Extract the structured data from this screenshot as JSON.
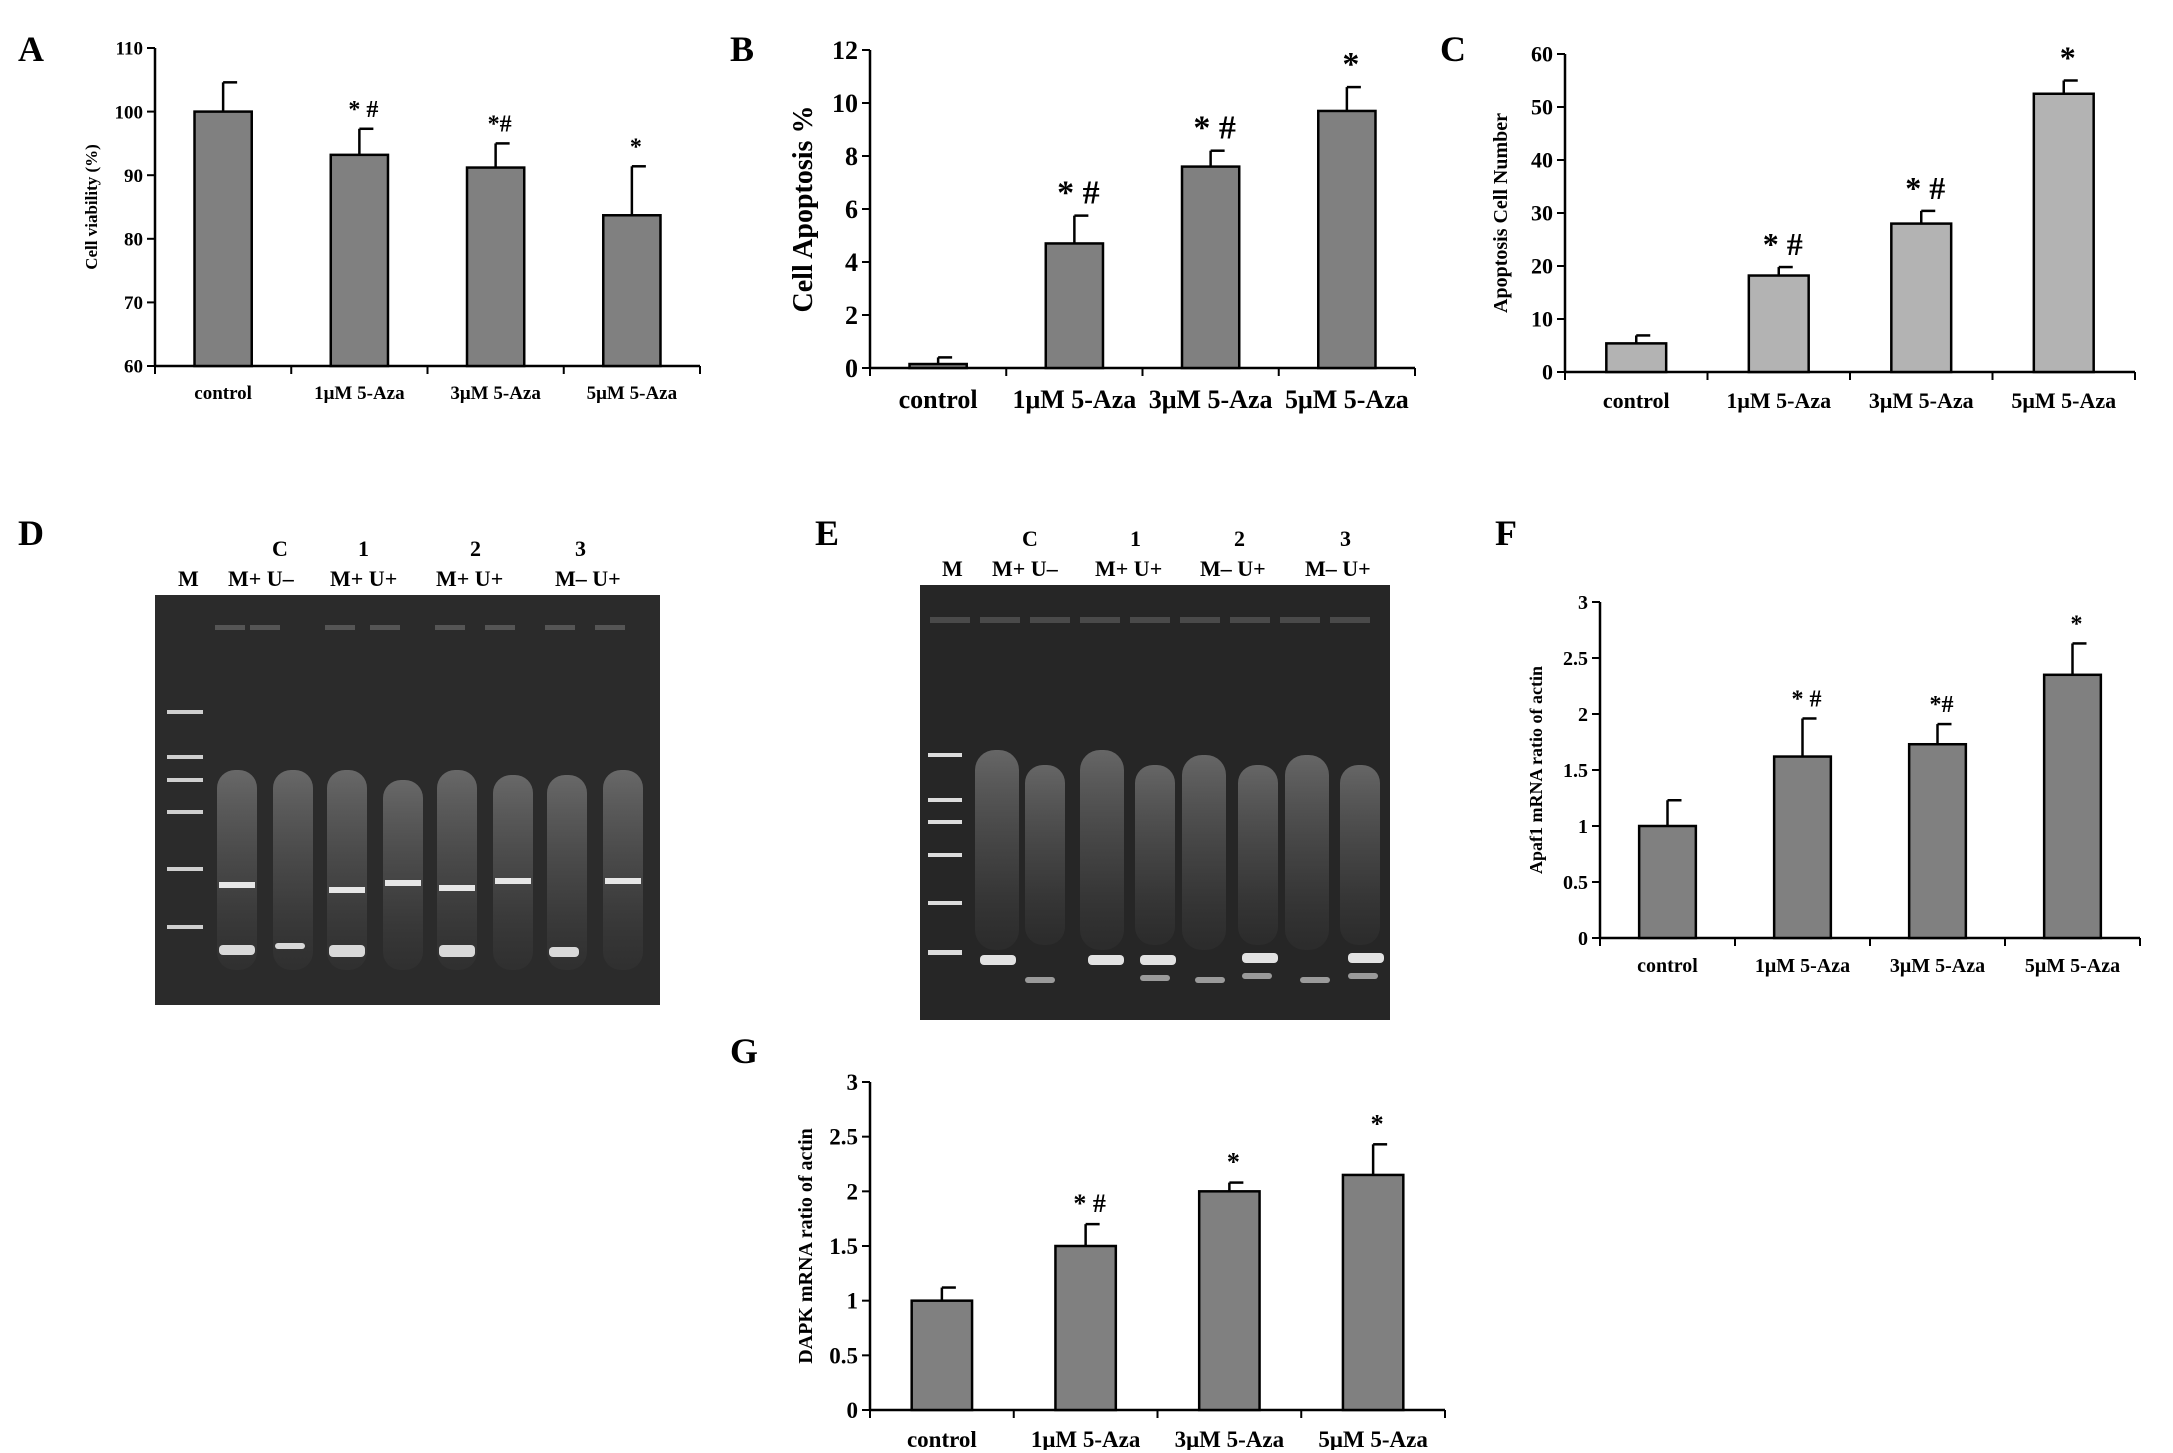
{
  "panels": [
    "A",
    "B",
    "C",
    "D",
    "E",
    "F",
    "G"
  ],
  "chart_data": [
    {
      "id": "A",
      "type": "bar",
      "categories": [
        "control",
        "1μM 5-Aza",
        "3μM 5-Aza",
        "5μM 5-Aza"
      ],
      "values": [
        100,
        93.2,
        91.2,
        83.7
      ],
      "errors": [
        4.6,
        4.1,
        3.8,
        7.7
      ],
      "annotations": [
        "",
        "* #",
        "*#",
        "*"
      ],
      "ylabel": "Cell viability (%)",
      "ylim": [
        60,
        110
      ],
      "yticks": [
        60,
        70,
        80,
        90,
        100,
        110
      ],
      "bar_color": "#808080"
    },
    {
      "id": "B",
      "type": "bar",
      "categories": [
        "control",
        "1μM 5-Aza",
        "3μM 5-Aza",
        "5μM 5-Aza"
      ],
      "values": [
        0.15,
        4.7,
        7.6,
        9.7
      ],
      "errors": [
        0.25,
        1.05,
        0.6,
        0.9
      ],
      "annotations": [
        "",
        "* #",
        "* #",
        "*"
      ],
      "ylabel": "Cell Apoptosis %",
      "ylim": [
        0,
        12
      ],
      "yticks": [
        0,
        2,
        4,
        6,
        8,
        10,
        12
      ],
      "bar_color": "#808080"
    },
    {
      "id": "C",
      "type": "bar",
      "categories": [
        "control",
        "1μM 5-Aza",
        "3μM 5-Aza",
        "5μM 5-Aza"
      ],
      "values": [
        5.4,
        18.2,
        28.0,
        52.5
      ],
      "errors": [
        1.5,
        1.6,
        2.4,
        2.5
      ],
      "annotations": [
        "",
        "* #",
        "* #",
        "*"
      ],
      "ylabel": "Apoptosis Cell Number",
      "ylim": [
        0,
        60
      ],
      "yticks": [
        0,
        10,
        20,
        30,
        40,
        50,
        60
      ],
      "bar_color": "#b3b3b3"
    },
    {
      "id": "F",
      "type": "bar",
      "categories": [
        "control",
        "1μM 5-Aza",
        "3μM 5-Aza",
        "5μM 5-Aza"
      ],
      "values": [
        1.0,
        1.62,
        1.73,
        2.35
      ],
      "errors": [
        0.23,
        0.34,
        0.18,
        0.28
      ],
      "annotations": [
        "",
        "* #",
        "*#",
        "*"
      ],
      "ylabel": "Apaf1 mRNA ratio of actin",
      "ylim": [
        0,
        3
      ],
      "yticks": [
        0,
        0.5,
        1,
        1.5,
        2,
        2.5,
        3
      ],
      "bar_color": "#808080"
    },
    {
      "id": "G",
      "type": "bar",
      "categories": [
        "control",
        "1μM 5-Aza",
        "3μM 5-Aza",
        "5μM 5-Aza"
      ],
      "values": [
        1.0,
        1.5,
        2.0,
        2.15
      ],
      "errors": [
        0.12,
        0.2,
        0.08,
        0.28
      ],
      "annotations": [
        "",
        "* #",
        "*",
        "*"
      ],
      "ylabel": "DAPK mRNA ratio of actin",
      "ylim": [
        0,
        3
      ],
      "yticks": [
        0,
        0.5,
        1,
        1.5,
        2,
        2.5,
        3
      ],
      "bar_color": "#808080"
    }
  ],
  "gel_D": {
    "marker_label": "M",
    "group_labels": [
      "C",
      "1",
      "2",
      "3"
    ],
    "lane_labels": [
      "M+ U–",
      "M+ U+",
      "M+ U+",
      "M– U+"
    ]
  },
  "gel_E": {
    "marker_label": "M",
    "group_labels": [
      "C",
      "1",
      "2",
      "3"
    ],
    "lane_labels": [
      "M+ U–",
      "M+ U+",
      "M– U+",
      "M– U+"
    ]
  }
}
